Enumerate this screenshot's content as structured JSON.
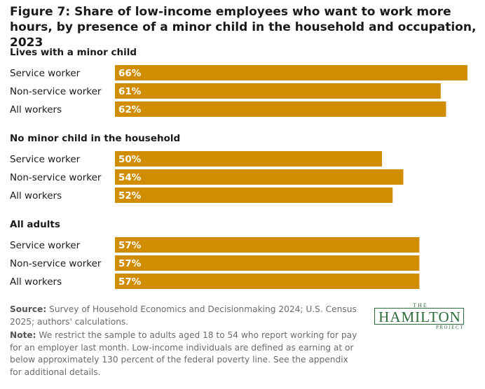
{
  "title": "Figure 7: Share of low-income employees who want to work more hours, by presence of a minor child in the household and occupation, 2023",
  "accent_color": "#d18d00",
  "chart_data": {
    "type": "bar",
    "orientation": "horizontal",
    "unit": "%",
    "groups": [
      {
        "name": "Lives with a minor child",
        "categories": [
          "Service worker",
          "Non-service worker",
          "All workers"
        ],
        "values": [
          66,
          61,
          62
        ],
        "labels": [
          "66%",
          "61%",
          "62%"
        ]
      },
      {
        "name": "No minor child in the household",
        "categories": [
          "Service worker",
          "Non-service worker",
          "All workers"
        ],
        "values": [
          50,
          54,
          52
        ],
        "labels": [
          "50%",
          "54%",
          "52%"
        ]
      },
      {
        "name": "All adults",
        "categories": [
          "Service worker",
          "Non-service worker",
          "All workers"
        ],
        "values": [
          57,
          57,
          57
        ],
        "labels": [
          "57%",
          "57%",
          "57%"
        ]
      }
    ]
  },
  "notes": {
    "source_label": "Source:",
    "source_text": "Survey of Household Economics and Decisionmaking 2024; U.S. Census 2025; authors' calculations.",
    "note_label": "Note:",
    "note_text": "We restrict the sample to adults aged 18 to 54 who report working for pay for an employer last month. Low-income individuals are defined as earning at or below approximately 130 percent of the federal poverty line. See the appendix for additional details."
  },
  "logo": {
    "the": "THE",
    "name": "HAMILTON",
    "project": "PROJECT"
  }
}
